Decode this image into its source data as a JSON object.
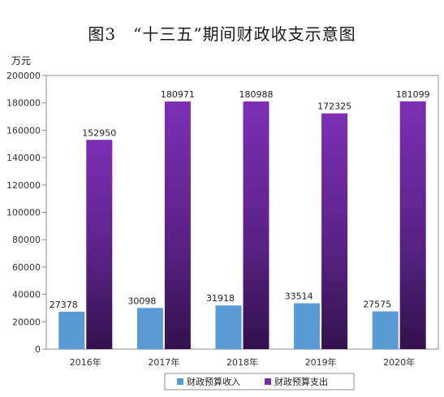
{
  "chart_data": {
    "type": "bar",
    "title": "图3　“十三五”期间财政收支示意图",
    "ylabel": "万元",
    "xlabel": "",
    "categories": [
      "2016年",
      "2017年",
      "2018年",
      "2019年",
      "2020年"
    ],
    "ylim": [
      0,
      200000
    ],
    "yticks": [
      0,
      20000,
      40000,
      60000,
      80000,
      100000,
      120000,
      140000,
      160000,
      180000,
      200000
    ],
    "series": [
      {
        "name": "财政预算收入",
        "values": [
          27378,
          30098,
          31918,
          33514,
          27575
        ],
        "color": "#5b9bd5"
      },
      {
        "name": "财政预算支出",
        "values": [
          152950,
          180971,
          180988,
          172325,
          181099
        ],
        "color": "#7030a0",
        "color_dark": "#3a1656"
      }
    ],
    "grid": false,
    "legend_position": "bottom"
  }
}
